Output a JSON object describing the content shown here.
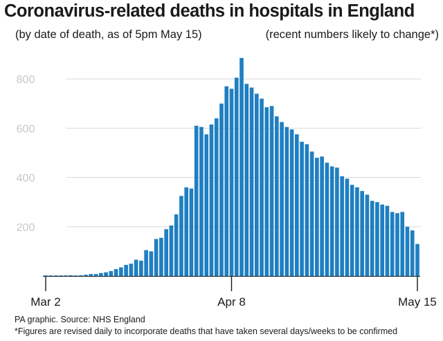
{
  "title": "Coronavirus-related deaths in hospitals in England",
  "subtitle_left": "(by date of death, as of 5pm May 15)",
  "subtitle_right": "(recent numbers likely to change*)",
  "source": "PA graphic. Source: NHS England",
  "footnote": "*Figures are revised daily to incorporate deaths that have taken several days/weeks to be confirmed",
  "colors": {
    "bar": "#1f7fc1",
    "grid": "#d9d9d9",
    "axis": "#1a1a1a",
    "ytick": "#c8c8c8"
  },
  "chart_data": {
    "type": "bar",
    "title": "Coronavirus-related deaths in hospitals in England",
    "ylim": [
      0,
      900
    ],
    "yticks": [
      200,
      400,
      600,
      800
    ],
    "grid": true,
    "x_tick_labels": [
      {
        "label": "Mar 2",
        "index": 0
      },
      {
        "label": "Apr 8",
        "index": 37
      },
      {
        "label": "May 15",
        "index": 74
      }
    ],
    "categories": [
      "2020-03-02",
      "2020-03-03",
      "2020-03-04",
      "2020-03-05",
      "2020-03-06",
      "2020-03-07",
      "2020-03-08",
      "2020-03-09",
      "2020-03-10",
      "2020-03-11",
      "2020-03-12",
      "2020-03-13",
      "2020-03-14",
      "2020-03-15",
      "2020-03-16",
      "2020-03-17",
      "2020-03-18",
      "2020-03-19",
      "2020-03-20",
      "2020-03-21",
      "2020-03-22",
      "2020-03-23",
      "2020-03-24",
      "2020-03-25",
      "2020-03-26",
      "2020-03-27",
      "2020-03-28",
      "2020-03-29",
      "2020-03-30",
      "2020-03-31",
      "2020-04-01",
      "2020-04-02",
      "2020-04-03",
      "2020-04-04",
      "2020-04-05",
      "2020-04-06",
      "2020-04-07",
      "2020-04-08",
      "2020-04-09",
      "2020-04-10",
      "2020-04-11",
      "2020-04-12",
      "2020-04-13",
      "2020-04-14",
      "2020-04-15",
      "2020-04-16",
      "2020-04-17",
      "2020-04-18",
      "2020-04-19",
      "2020-04-20",
      "2020-04-21",
      "2020-04-22",
      "2020-04-23",
      "2020-04-24",
      "2020-04-25",
      "2020-04-26",
      "2020-04-27",
      "2020-04-28",
      "2020-04-29",
      "2020-04-30",
      "2020-05-01",
      "2020-05-02",
      "2020-05-03",
      "2020-05-04",
      "2020-05-05",
      "2020-05-06",
      "2020-05-07",
      "2020-05-08",
      "2020-05-09",
      "2020-05-10",
      "2020-05-11",
      "2020-05-12",
      "2020-05-13",
      "2020-05-14",
      "2020-05-15"
    ],
    "values": [
      1,
      1,
      1,
      2,
      1,
      3,
      2,
      3,
      5,
      8,
      8,
      12,
      15,
      20,
      28,
      35,
      45,
      50,
      66,
      62,
      105,
      100,
      150,
      155,
      190,
      205,
      250,
      325,
      360,
      355,
      610,
      605,
      575,
      615,
      640,
      700,
      770,
      760,
      805,
      885,
      780,
      765,
      740,
      720,
      685,
      690,
      648,
      625,
      605,
      595,
      575,
      545,
      535,
      505,
      480,
      485,
      460,
      445,
      440,
      405,
      395,
      370,
      360,
      345,
      330,
      305,
      300,
      290,
      285,
      260,
      255,
      260,
      200,
      185,
      130
    ]
  }
}
